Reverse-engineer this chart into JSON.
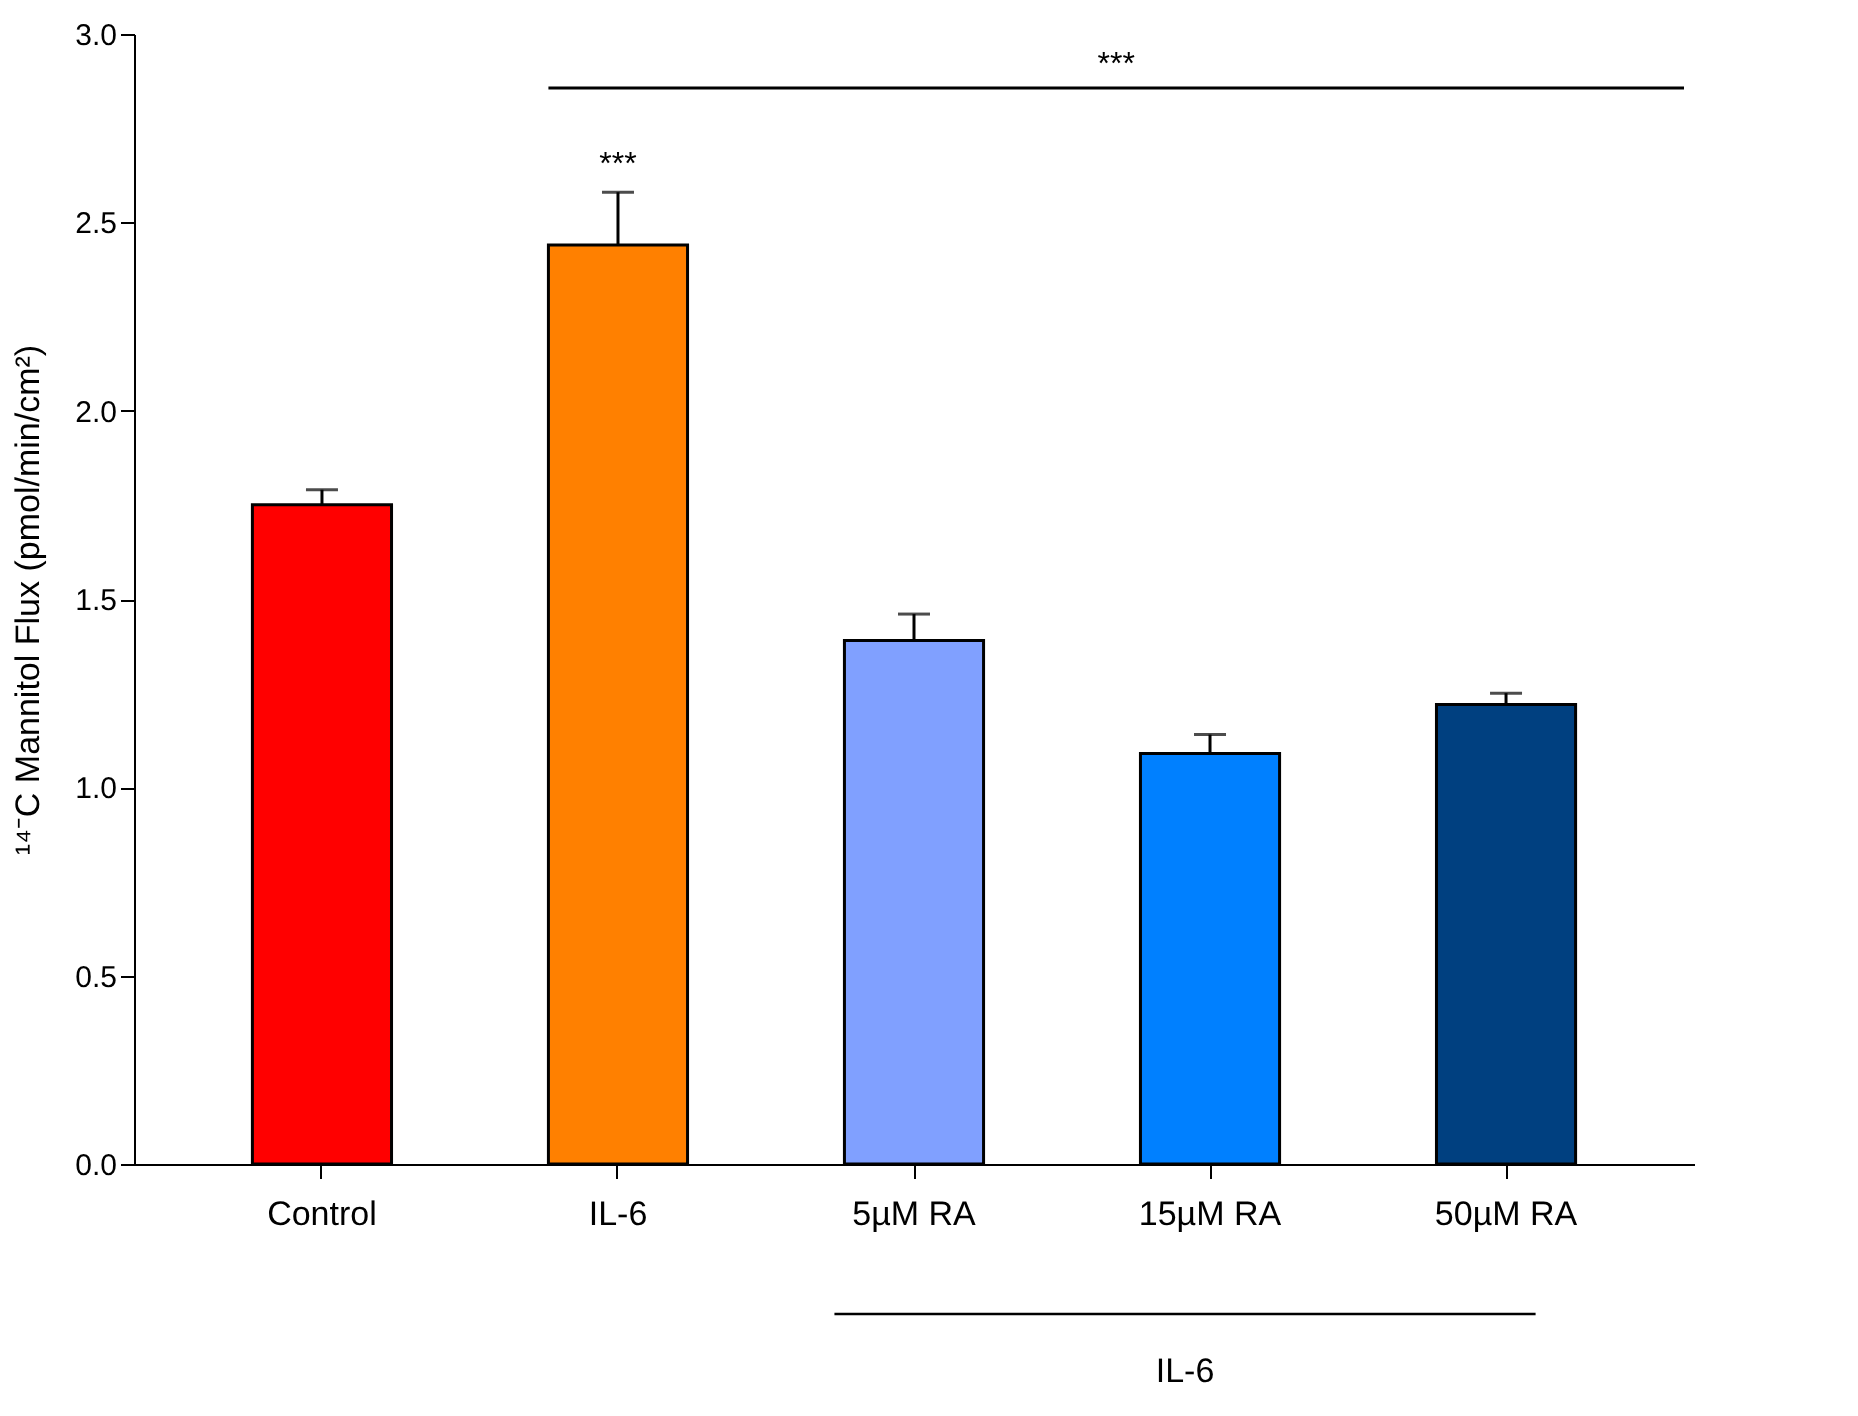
{
  "chart_data": {
    "type": "bar",
    "ylabel": "¹⁴⁻C Mannitol Flux (pmol/min/cm²)",
    "categories": [
      "Control",
      "IL-6",
      "5µM RA",
      "15µM RA",
      "50µM RA"
    ],
    "values": [
      1.75,
      2.44,
      1.39,
      1.09,
      1.22
    ],
    "errors": [
      [
        1.75,
        1.79
      ],
      [
        2.44,
        2.58
      ],
      [
        1.39,
        1.46
      ],
      [
        1.09,
        1.14
      ],
      [
        1.22,
        1.25
      ]
    ],
    "colors": [
      "#ff0000",
      "#ff8000",
      "#80a0ff",
      "#0080ff",
      "#004080"
    ],
    "ylim": [
      0,
      3.0
    ],
    "yticks": [
      {
        "value": 0,
        "label": "0.0"
      },
      {
        "value": 0.5,
        "label": "0.5"
      },
      {
        "value": 1.0,
        "label": "1.0"
      },
      {
        "value": 1.5,
        "label": "1.5"
      },
      {
        "value": 2.0,
        "label": "2.0"
      },
      {
        "value": 2.5,
        "label": "2.5"
      },
      {
        "value": 3.0,
        "label": "3.0"
      }
    ],
    "annotations": [
      "***",
      "***",
      "IL-6"
    ],
    "grid": false
  }
}
